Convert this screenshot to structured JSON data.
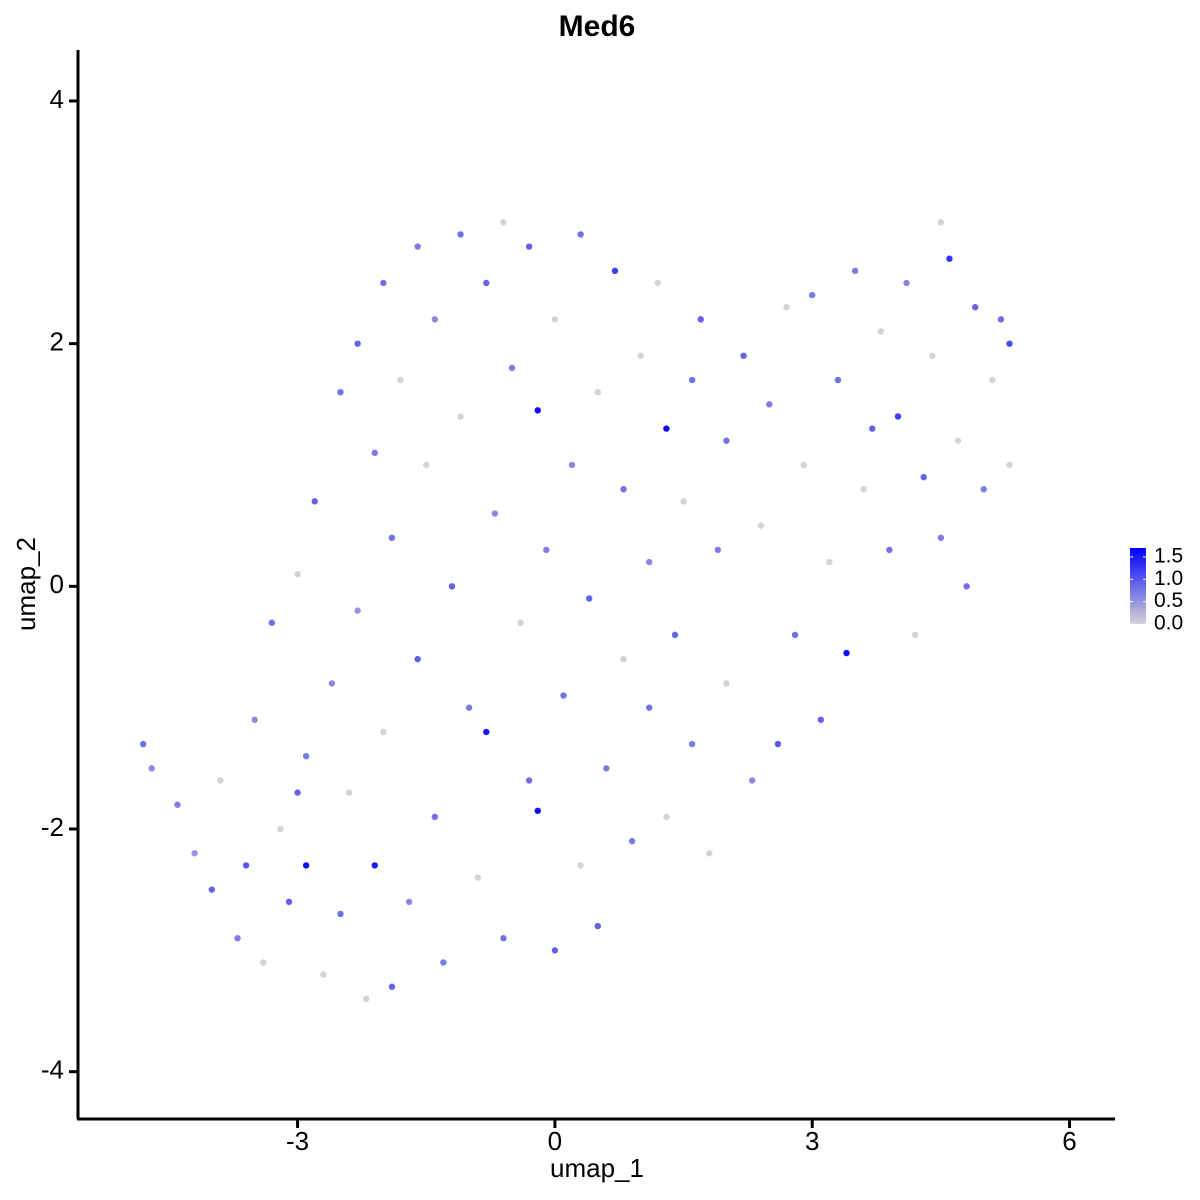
{
  "chart_data": {
    "type": "scatter",
    "title": "Med6",
    "x_label": "umap_1",
    "y_label": "umap_2",
    "x": [
      -4.8,
      -4.7,
      -4.4,
      -4.2,
      -4.0,
      -3.9,
      -3.7,
      -3.6,
      -3.5,
      -3.4,
      -3.3,
      -3.2,
      -3.1,
      -3.0,
      -2.9,
      -2.9,
      -2.8,
      -2.7,
      -2.6,
      -2.5,
      -2.5,
      -2.4,
      -2.3,
      -2.3,
      -2.2,
      -2.1,
      -2.1,
      -2.0,
      -2.0,
      -1.9,
      -1.9,
      -1.8,
      -1.7,
      -1.6,
      -1.6,
      -1.5,
      -1.4,
      -1.4,
      -1.3,
      -1.2,
      -1.1,
      -1.1,
      -1.0,
      -0.9,
      -0.8,
      -0.8,
      -0.7,
      -0.6,
      -0.6,
      -0.5,
      -0.4,
      -0.3,
      -0.3,
      -0.2,
      -0.2,
      -0.1,
      0.0,
      0.0,
      0.1,
      0.2,
      0.3,
      0.3,
      0.4,
      0.5,
      0.5,
      0.6,
      0.7,
      0.8,
      0.8,
      0.9,
      1.0,
      1.1,
      1.1,
      1.2,
      1.3,
      1.3,
      1.4,
      1.5,
      1.6,
      1.6,
      1.7,
      1.8,
      1.9,
      2.0,
      2.0,
      2.2,
      2.3,
      2.4,
      2.5,
      2.6,
      2.7,
      2.8,
      2.9,
      3.0,
      3.1,
      3.2,
      3.3,
      3.4,
      3.5,
      3.6,
      3.7,
      3.8,
      3.9,
      4.0,
      4.1,
      4.2,
      4.3,
      4.4,
      4.5,
      4.5,
      4.6,
      4.7,
      4.8,
      4.9,
      5.0,
      5.1,
      5.2,
      5.3,
      5.3,
      -3.0
    ],
    "y": [
      -1.3,
      -1.5,
      -1.8,
      -2.2,
      -2.5,
      -1.6,
      -2.9,
      -2.3,
      -1.1,
      -3.1,
      -0.3,
      -2.0,
      -2.6,
      0.1,
      -2.3,
      -1.4,
      0.7,
      -3.2,
      -0.8,
      1.6,
      -2.7,
      -1.7,
      2.0,
      -0.2,
      -3.4,
      1.1,
      -2.3,
      2.5,
      -1.2,
      0.4,
      -3.3,
      1.7,
      -2.6,
      2.8,
      -0.6,
      1.0,
      -1.9,
      2.2,
      -3.1,
      0.0,
      2.9,
      1.4,
      -1.0,
      -2.4,
      -1.2,
      2.5,
      0.6,
      3.0,
      -2.9,
      1.8,
      -0.3,
      -1.6,
      2.8,
      1.45,
      -1.85,
      0.3,
      -3.0,
      2.2,
      -0.9,
      1.0,
      -2.3,
      2.9,
      -0.1,
      -2.8,
      1.6,
      -1.5,
      2.6,
      -0.6,
      0.8,
      -2.1,
      1.9,
      -1.0,
      0.2,
      2.5,
      1.3,
      -1.9,
      -0.4,
      0.7,
      -1.3,
      1.7,
      2.2,
      -2.2,
      0.3,
      -0.8,
      1.2,
      1.9,
      -1.6,
      0.5,
      1.5,
      -1.3,
      2.3,
      -0.4,
      1.0,
      2.4,
      -1.1,
      0.2,
      1.7,
      -0.55,
      2.6,
      0.8,
      1.3,
      2.1,
      0.3,
      1.4,
      2.5,
      -0.4,
      0.9,
      1.9,
      3.0,
      0.4,
      2.7,
      1.2,
      0.0,
      2.3,
      0.8,
      1.7,
      2.2,
      2.0,
      1.0,
      -1.7
    ],
    "values": [
      0.8,
      0.6,
      0.7,
      0.5,
      0.9,
      0.0,
      0.7,
      1.0,
      0.6,
      0.0,
      0.8,
      0.0,
      0.9,
      0.0,
      1.6,
      0.7,
      0.9,
      0.0,
      0.6,
      0.8,
      0.8,
      0.0,
      0.9,
      0.5,
      0.0,
      0.7,
      1.5,
      0.8,
      0.0,
      0.8,
      0.9,
      0.0,
      0.6,
      0.7,
      0.9,
      0.0,
      0.8,
      0.6,
      0.7,
      0.9,
      0.8,
      0.0,
      0.7,
      0.0,
      1.5,
      0.9,
      0.6,
      0.0,
      0.8,
      0.7,
      0.0,
      0.8,
      0.9,
      1.6,
      1.6,
      0.7,
      0.9,
      0.0,
      0.8,
      0.6,
      0.0,
      0.8,
      0.9,
      0.9,
      0.0,
      0.7,
      1.2,
      0.0,
      0.8,
      0.7,
      0.0,
      0.8,
      0.6,
      0.0,
      1.6,
      0.0,
      0.9,
      0.0,
      0.7,
      0.8,
      0.9,
      0.0,
      0.7,
      0.0,
      0.8,
      0.9,
      0.6,
      0.0,
      0.7,
      1.0,
      0.0,
      0.8,
      0.0,
      0.7,
      0.9,
      0.0,
      0.8,
      1.6,
      0.7,
      0.0,
      0.9,
      0.0,
      0.8,
      1.2,
      0.6,
      0.0,
      0.9,
      0.0,
      0.0,
      0.7,
      1.3,
      0.0,
      0.8,
      0.9,
      0.7,
      0.0,
      0.8,
      1.1,
      0.0,
      0.9
    ],
    "xlim": [
      -5.56,
      6.53
    ],
    "ylim": [
      -4.39,
      4.42
    ],
    "xticks": [
      -3,
      0,
      3,
      6
    ],
    "yticks": [
      -4,
      -2,
      0,
      2,
      4
    ],
    "colors": [
      "#d3d3d3",
      "#0000ff"
    ],
    "colorlim": [
      0,
      1.7
    ],
    "colorticks": [
      {
        "value": 0,
        "label": "0.0"
      },
      0.5,
      {
        "value": 1,
        "label": "1.0"
      },
      1.5
    ]
  }
}
